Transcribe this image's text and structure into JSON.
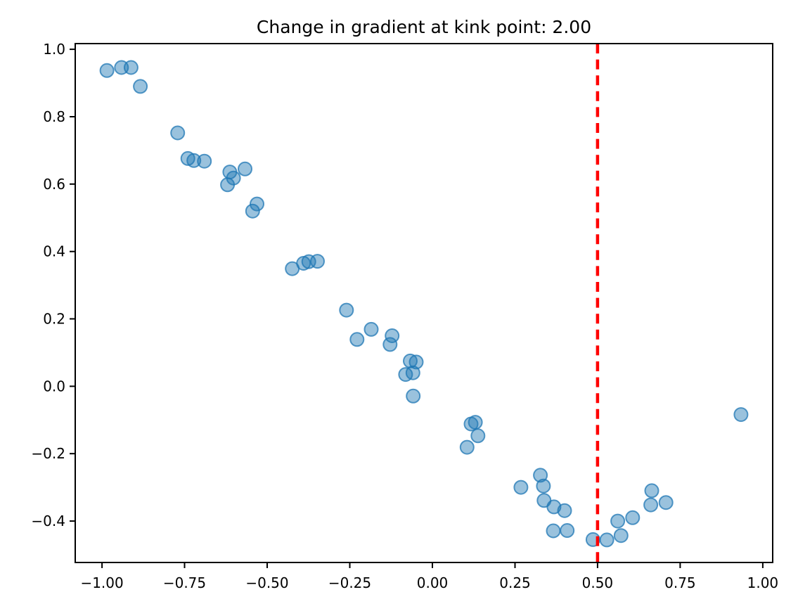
{
  "chart_data": {
    "type": "scatter",
    "title": "Change in gradient at kink point: 2.00",
    "xlabel": "",
    "ylabel": "",
    "xlim": [
      -1.081,
      1.03
    ],
    "ylim": [
      -0.523,
      1.017
    ],
    "grid": false,
    "legend": null,
    "x_ticks": {
      "values": [
        -1.0,
        -0.75,
        -0.5,
        -0.25,
        0.0,
        0.25,
        0.5,
        0.75,
        1.0
      ],
      "labels": [
        "−1.00",
        "−0.75",
        "−0.50",
        "−0.25",
        "0.00",
        "0.25",
        "0.50",
        "0.75",
        "1.00"
      ]
    },
    "y_ticks": {
      "values": [
        1.0,
        0.8,
        0.6,
        0.4,
        0.2,
        0.0,
        -0.2,
        -0.4
      ],
      "labels": [
        "1.0",
        "0.8",
        "0.6",
        "0.4",
        "0.2",
        "0.0",
        "−0.2",
        "−0.4"
      ]
    },
    "series": [
      {
        "name": "scatter-points",
        "marker": "circle",
        "color": "#1f77b4",
        "alpha": 0.5,
        "points": [
          [
            -0.985,
            0.937
          ],
          [
            -0.941,
            0.946
          ],
          [
            -0.912,
            0.946
          ],
          [
            -0.884,
            0.89
          ],
          [
            -0.771,
            0.752
          ],
          [
            -0.74,
            0.676
          ],
          [
            -0.722,
            0.67
          ],
          [
            -0.69,
            0.668
          ],
          [
            -0.613,
            0.636
          ],
          [
            -0.602,
            0.618
          ],
          [
            -0.62,
            0.598
          ],
          [
            -0.567,
            0.645
          ],
          [
            -0.531,
            0.541
          ],
          [
            -0.544,
            0.52
          ],
          [
            -0.424,
            0.349
          ],
          [
            -0.39,
            0.365
          ],
          [
            -0.374,
            0.37
          ],
          [
            -0.348,
            0.371
          ],
          [
            -0.26,
            0.226
          ],
          [
            -0.228,
            0.139
          ],
          [
            -0.185,
            0.169
          ],
          [
            -0.122,
            0.15
          ],
          [
            -0.128,
            0.124
          ],
          [
            -0.067,
            0.075
          ],
          [
            -0.049,
            0.072
          ],
          [
            -0.059,
            0.04
          ],
          [
            -0.081,
            0.035
          ],
          [
            -0.058,
            -0.029
          ],
          [
            0.117,
            -0.112
          ],
          [
            0.13,
            -0.107
          ],
          [
            0.138,
            -0.147
          ],
          [
            0.105,
            -0.181
          ],
          [
            0.268,
            -0.3
          ],
          [
            0.327,
            -0.264
          ],
          [
            0.336,
            -0.296
          ],
          [
            0.338,
            -0.339
          ],
          [
            0.368,
            -0.358
          ],
          [
            0.4,
            -0.369
          ],
          [
            0.366,
            -0.429
          ],
          [
            0.408,
            -0.428
          ],
          [
            0.486,
            -0.455
          ],
          [
            0.528,
            -0.456
          ],
          [
            0.571,
            -0.443
          ],
          [
            0.561,
            -0.4
          ],
          [
            0.606,
            -0.39
          ],
          [
            0.664,
            -0.31
          ],
          [
            0.661,
            -0.352
          ],
          [
            0.707,
            -0.345
          ],
          [
            0.934,
            -0.084
          ]
        ]
      }
    ],
    "vline": {
      "x": 0.5,
      "color": "#ff0000",
      "style": "dashed"
    },
    "axis_color": "#000000",
    "background_color": "#ffffff"
  }
}
